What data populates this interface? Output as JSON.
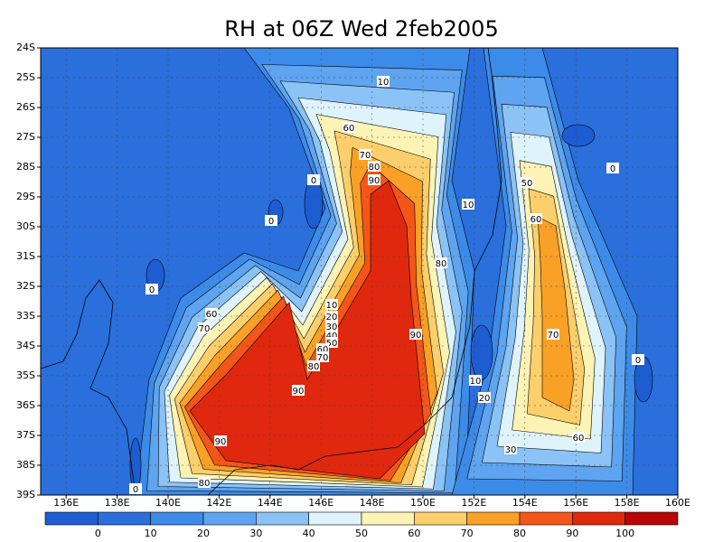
{
  "chart_data": {
    "type": "contour",
    "title": "RH at 06Z Wed 2feb2005",
    "xlim": [
      135,
      160
    ],
    "ylim": [
      -39,
      -24
    ],
    "grid": true,
    "xticks": [
      {
        "value": 136,
        "label": "136E"
      },
      {
        "value": 138,
        "label": "138E"
      },
      {
        "value": 140,
        "label": "140E"
      },
      {
        "value": 142,
        "label": "142E"
      },
      {
        "value": 144,
        "label": "144E"
      },
      {
        "value": 146,
        "label": "146E"
      },
      {
        "value": 148,
        "label": "148E"
      },
      {
        "value": 150,
        "label": "150E"
      },
      {
        "value": 152,
        "label": "152E"
      },
      {
        "value": 154,
        "label": "154E"
      },
      {
        "value": 156,
        "label": "156E"
      },
      {
        "value": 158,
        "label": "158E"
      },
      {
        "value": 160,
        "label": "160E"
      }
    ],
    "yticks": [
      {
        "value": -39,
        "label": "39S"
      },
      {
        "value": -38,
        "label": "38S"
      },
      {
        "value": -37,
        "label": "37S"
      },
      {
        "value": -36,
        "label": "36S"
      },
      {
        "value": -35,
        "label": "35S"
      },
      {
        "value": -34,
        "label": "34S"
      },
      {
        "value": -33,
        "label": "33S"
      },
      {
        "value": -32,
        "label": "32S"
      },
      {
        "value": -31,
        "label": "31S"
      },
      {
        "value": -30,
        "label": "30S"
      },
      {
        "value": -29,
        "label": "29S"
      },
      {
        "value": -28,
        "label": "28S"
      },
      {
        "value": -27,
        "label": "27S"
      },
      {
        "value": -26,
        "label": "26S"
      },
      {
        "value": -25,
        "label": "25S"
      },
      {
        "value": -24,
        "label": "24S"
      }
    ],
    "levels": [
      0,
      10,
      20,
      30,
      40,
      50,
      60,
      70,
      80,
      90,
      100
    ],
    "colors": [
      "#1e5cd2",
      "#2a6fdc",
      "#3d8be8",
      "#5ea4f0",
      "#8cc3f6",
      "#dff3fc",
      "#fdf3b4",
      "#fdcf6c",
      "#f9a126",
      "#f4561a",
      "#e0280e",
      "#b80606"
    ],
    "contour_labels": [
      10,
      60,
      70,
      80,
      90,
      0,
      0,
      10,
      50,
      60,
      80,
      0,
      10,
      20,
      30,
      40,
      50,
      60,
      70,
      80,
      60,
      70,
      90,
      70,
      0,
      10,
      20,
      90,
      30,
      60,
      90,
      0,
      80,
      0
    ]
  }
}
